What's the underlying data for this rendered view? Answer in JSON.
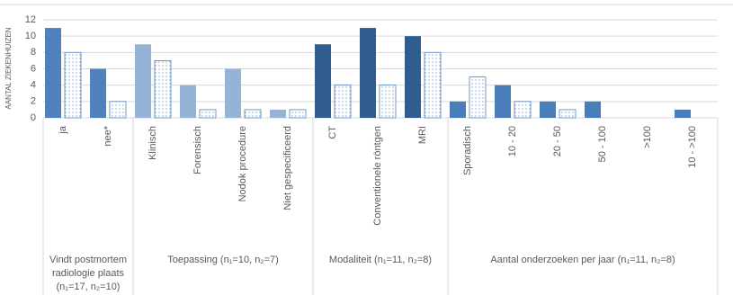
{
  "chart_data": {
    "type": "bar",
    "y_label": "AANTAL ZIEKENHUIZEN",
    "ylim": [
      0,
      12
    ],
    "yticks": [
      0,
      2,
      4,
      6,
      8,
      10,
      12
    ],
    "grid": true,
    "groups": [
      {
        "label": "Vindt postmortem radiologie plaats (n₁=17, n₂=10)",
        "color": "#4f81bd",
        "categories": [
          "ja",
          "nee*"
        ]
      },
      {
        "label": "Toepassing (n₁=10, n₂=7)",
        "color": "#95b3d7",
        "categories": [
          "Klinisch",
          "Forensisch",
          "Nodok procedure",
          "Niet gespecificeerd"
        ]
      },
      {
        "label": "Modaliteit (n₁=11, n₂=8)",
        "color": "#2f5d8f",
        "categories": [
          "CT",
          "Conventionele röntgen",
          "MRI"
        ]
      },
      {
        "label": "Aantal onderzoeken per jaar (n₁=11, n₂=8)",
        "color": "#4a7ebb",
        "categories": [
          "Sporadisch",
          "10 - 20",
          "20 - 50",
          "50 - 100",
          ">100",
          "10 - >100"
        ]
      }
    ],
    "series": [
      {
        "values": [
          11,
          6,
          9,
          4,
          6,
          1,
          9,
          11,
          10,
          2,
          4,
          2,
          2,
          0,
          1
        ]
      },
      {
        "color": "#4f81bd",
        "pattern": "dotted",
        "values": [
          8,
          2,
          7,
          1,
          1,
          1,
          4,
          4,
          8,
          5,
          2,
          1,
          0,
          0,
          0
        ]
      }
    ]
  }
}
